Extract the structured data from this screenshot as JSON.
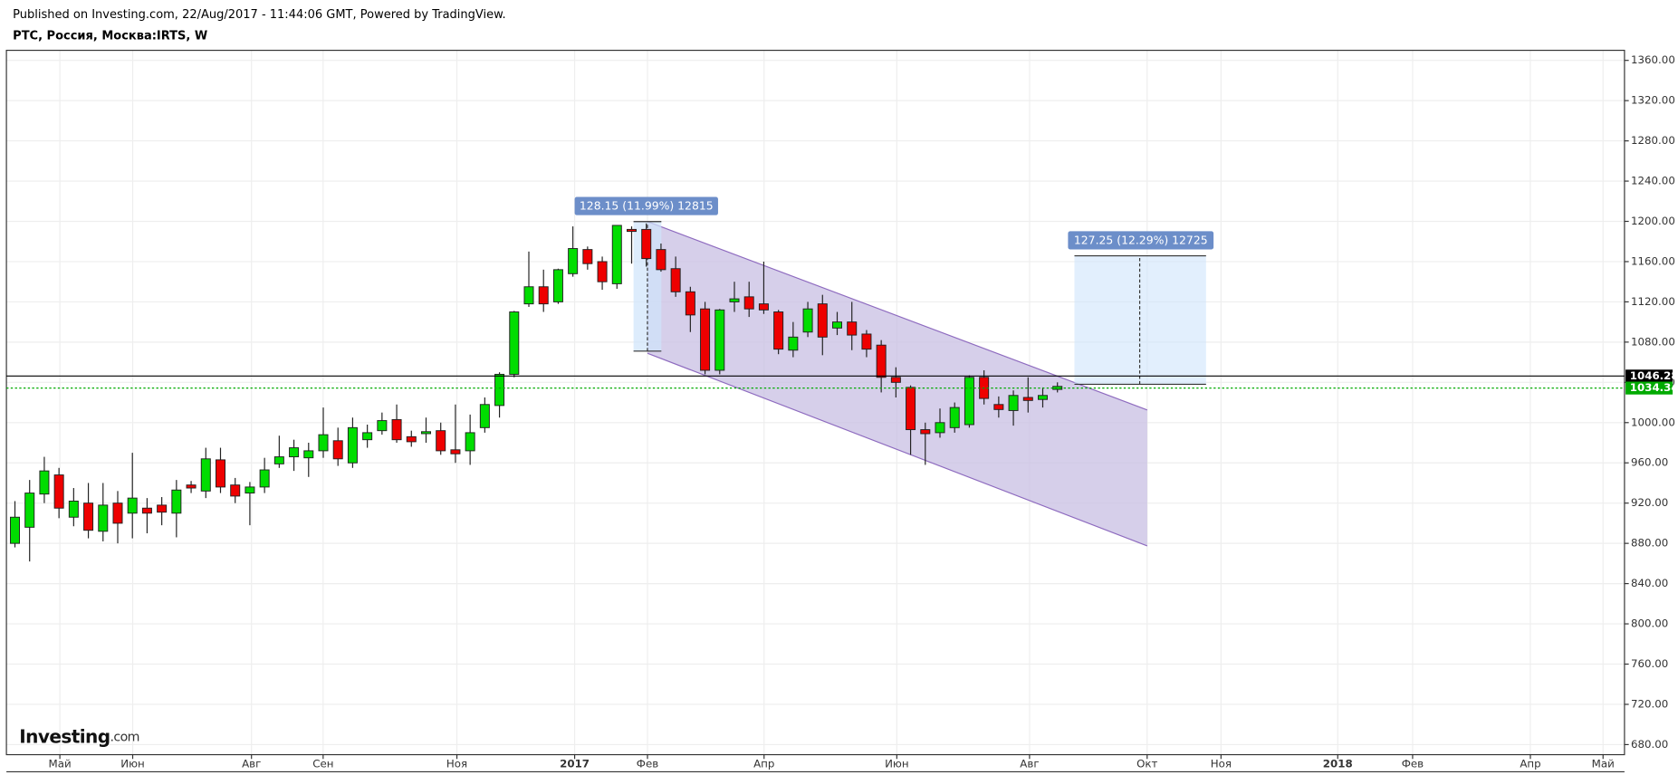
{
  "header": {
    "published": "Published on Investing.com, 22/Aug/2017 - 11:44:06 GMT, Powered by TradingView.",
    "symbol": "РТС, Россия, Москва:IRTS, W",
    "logo": "Investing",
    "logo_suffix": ".com"
  },
  "chart_data": {
    "type": "candlestick",
    "open": [
      880,
      896,
      929,
      948,
      906,
      920,
      892,
      920,
      910,
      915,
      918,
      910,
      938,
      932,
      963,
      938,
      930,
      936,
      959,
      966,
      965,
      972,
      982,
      960,
      983,
      992,
      1003,
      986,
      989,
      992,
      973,
      972,
      995,
      1017,
      1048,
      1118,
      1135,
      1120,
      1148,
      1172,
      1160,
      1138,
      1192,
      1192,
      1172,
      1153,
      1130,
      1113,
      1052,
      1120,
      1125,
      1118,
      1110,
      1072,
      1090,
      1118,
      1094,
      1100,
      1088,
      1077,
      1045,
      1035,
      993,
      990,
      995,
      998,
      1045,
      1018,
      1012,
      1025,
      1023,
      1033
    ],
    "high": [
      922,
      943,
      966,
      955,
      935,
      940,
      940,
      932,
      970,
      925,
      926,
      943,
      942,
      975,
      975,
      945,
      941,
      965,
      987,
      983,
      980,
      1015,
      995,
      1005,
      998,
      1010,
      1018,
      992,
      1005,
      1000,
      1018,
      1008,
      1025,
      1050,
      1111,
      1170,
      1152,
      1153,
      1195,
      1175,
      1165,
      1196,
      1195,
      1198,
      1178,
      1165,
      1135,
      1120,
      1113,
      1140,
      1140,
      1160,
      1112,
      1100,
      1120,
      1127,
      1110,
      1120,
      1092,
      1082,
      1055,
      1037,
      1000,
      1014,
      1020,
      1047,
      1052,
      1026,
      1032,
      1045,
      1035,
      1040
    ],
    "low": [
      876,
      862,
      920,
      905,
      897,
      885,
      882,
      880,
      885,
      890,
      898,
      886,
      930,
      925,
      930,
      920,
      898,
      930,
      955,
      952,
      946,
      965,
      957,
      955,
      975,
      988,
      980,
      976,
      980,
      968,
      960,
      958,
      990,
      1005,
      1045,
      1115,
      1110,
      1118,
      1145,
      1152,
      1132,
      1133,
      1158,
      1155,
      1150,
      1125,
      1090,
      1048,
      1048,
      1110,
      1105,
      1108,
      1068,
      1065,
      1085,
      1067,
      1087,
      1072,
      1065,
      1030,
      1025,
      968,
      958,
      985,
      990,
      995,
      1018,
      1005,
      997,
      1010,
      1015,
      1030
    ],
    "close": [
      906,
      930,
      952,
      915,
      922,
      893,
      918,
      900,
      925,
      910,
      911,
      933,
      935,
      964,
      936,
      927,
      936,
      953,
      966,
      975,
      972,
      988,
      964,
      995,
      990,
      1002,
      983,
      981,
      991,
      972,
      969,
      990,
      1018,
      1048,
      1110,
      1135,
      1118,
      1152,
      1173,
      1158,
      1140,
      1196,
      1190,
      1163,
      1152,
      1130,
      1107,
      1052,
      1112,
      1123,
      1113,
      1112,
      1073,
      1085,
      1113,
      1085,
      1100,
      1087,
      1073,
      1045,
      1040,
      993,
      989,
      1000,
      1015,
      1045,
      1024,
      1013,
      1027,
      1022,
      1027,
      1036
    ],
    "up_color": "#00dd00",
    "down_color": "#ee0000",
    "xlim": [
      -0.58,
      109.62
    ],
    "xticks": [
      {
        "value": 3.06,
        "label": "Май"
      },
      {
        "value": 8.02,
        "label": "Июн"
      },
      {
        "value": 16.11,
        "label": "Авг"
      },
      {
        "value": 20.99,
        "label": "Сен"
      },
      {
        "value": 30.1,
        "label": "Ноя"
      },
      {
        "value": 38.12,
        "label": "2017"
      },
      {
        "value": 43.08,
        "label": "Фев"
      },
      {
        "value": 51.02,
        "label": "Апр"
      },
      {
        "value": 60.06,
        "label": "Июн"
      },
      {
        "value": 69.1,
        "label": "Авг"
      },
      {
        "value": 77.11,
        "label": "Окт"
      },
      {
        "value": 82.14,
        "label": "Ноя"
      },
      {
        "value": 90.09,
        "label": "2018"
      },
      {
        "value": 95.19,
        "label": "Фев"
      },
      {
        "value": 103.21,
        "label": "Апр"
      },
      {
        "value": 108.16,
        "label": "Май"
      }
    ],
    "ylim": [
      670,
      1370
    ],
    "yticks": [
      {
        "value": 680,
        "label": "680.00"
      },
      {
        "value": 720,
        "label": "720.00"
      },
      {
        "value": 760,
        "label": "760.00"
      },
      {
        "value": 800,
        "label": "800.00"
      },
      {
        "value": 840,
        "label": "840.00"
      },
      {
        "value": 880,
        "label": "880.00"
      },
      {
        "value": 920,
        "label": "920.00"
      },
      {
        "value": 960,
        "label": "960.00"
      },
      {
        "value": 1000,
        "label": "1000.00"
      },
      {
        "value": 1040,
        "label": "1040.00"
      },
      {
        "value": 1080,
        "label": "1080.00"
      },
      {
        "value": 1120,
        "label": "1120.00"
      },
      {
        "value": 1160,
        "label": "1160.00"
      },
      {
        "value": 1200,
        "label": "1200.00"
      },
      {
        "value": 1240,
        "label": "1240.00"
      },
      {
        "value": 1280,
        "label": "1280.00"
      },
      {
        "value": 1320,
        "label": "1320.00"
      },
      {
        "value": 1360,
        "label": "1360.00"
      }
    ],
    "grid": true,
    "price_lines": [
      {
        "value": 1046.28,
        "color": "#000000"
      },
      {
        "value": 1034.34,
        "color": "#00aa00"
      }
    ],
    "annotations": [
      "128.15 (11.99%) 12815",
      "127.25 (12.29%) 12725"
    ]
  }
}
